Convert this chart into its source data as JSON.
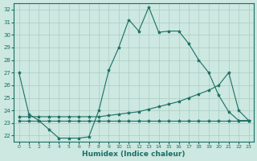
{
  "xlabel": "Humidex (Indice chaleur)",
  "bg_color": "#cce8e0",
  "line_color": "#1a6e64",
  "grid_color": "#aaccc4",
  "x_ticks": [
    0,
    1,
    2,
    3,
    4,
    5,
    6,
    7,
    8,
    9,
    10,
    11,
    12,
    13,
    14,
    15,
    16,
    17,
    18,
    19,
    20,
    21,
    22,
    23
  ],
  "y_ticks": [
    22,
    23,
    24,
    25,
    26,
    27,
    28,
    29,
    30,
    31,
    32
  ],
  "xlim": [
    -0.5,
    23.5
  ],
  "ylim": [
    21.5,
    32.5
  ],
  "series1_x": [
    0,
    1,
    2,
    3,
    4,
    5,
    6,
    7,
    8,
    9,
    10,
    11,
    12,
    13,
    14,
    15,
    16,
    17,
    18,
    19,
    20,
    21,
    22,
    23
  ],
  "series1_y": [
    27.0,
    23.7,
    23.2,
    22.5,
    21.8,
    21.8,
    21.8,
    21.9,
    24.0,
    27.2,
    29.0,
    31.2,
    30.3,
    32.2,
    30.2,
    30.3,
    30.3,
    29.3,
    28.0,
    27.0,
    25.2,
    23.9,
    23.2,
    23.2
  ],
  "series2_x": [
    0,
    1,
    2,
    3,
    4,
    5,
    6,
    7,
    8,
    9,
    10,
    11,
    12,
    13,
    14,
    15,
    16,
    17,
    18,
    19,
    20,
    21,
    22,
    23
  ],
  "series2_y": [
    23.5,
    23.5,
    23.5,
    23.5,
    23.5,
    23.5,
    23.5,
    23.5,
    23.5,
    23.6,
    23.7,
    23.8,
    23.9,
    24.1,
    24.3,
    24.5,
    24.7,
    25.0,
    25.3,
    25.6,
    26.0,
    27.0,
    24.0,
    23.2
  ],
  "series3_x": [
    0,
    1,
    2,
    3,
    4,
    5,
    6,
    7,
    8,
    9,
    10,
    11,
    12,
    13,
    14,
    15,
    16,
    17,
    18,
    19,
    20,
    21,
    22,
    23
  ],
  "series3_y": [
    23.2,
    23.2,
    23.2,
    23.2,
    23.2,
    23.2,
    23.2,
    23.2,
    23.2,
    23.2,
    23.2,
    23.2,
    23.2,
    23.2,
    23.2,
    23.2,
    23.2,
    23.2,
    23.2,
    23.2,
    23.2,
    23.2,
    23.2,
    23.2
  ]
}
